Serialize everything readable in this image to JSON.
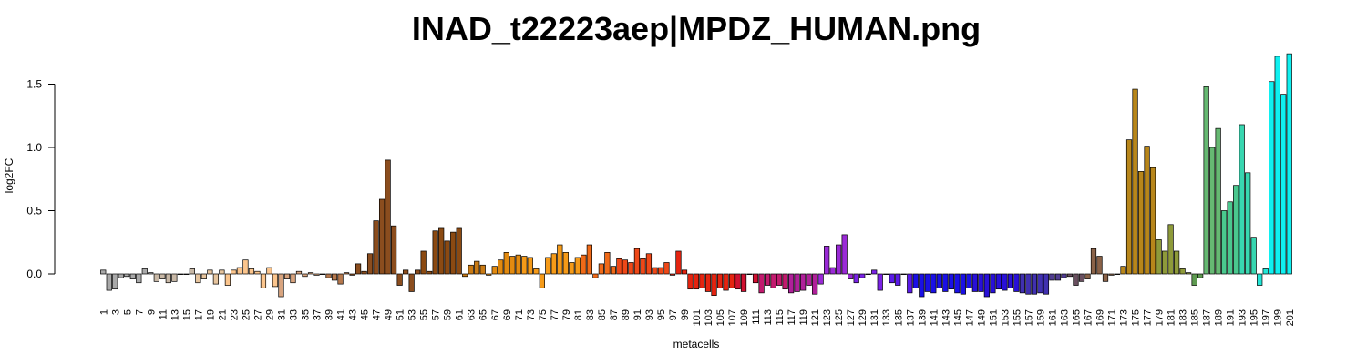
{
  "chart_data": {
    "type": "bar",
    "title": "INAD_t22223aep|MPDZ_HUMAN.png",
    "xlabel": "metacells",
    "ylabel": "log2FC",
    "ylim": [
      -0.2,
      1.75
    ],
    "yticks": [
      0.0,
      0.5,
      1.0,
      1.5
    ],
    "ytick_labels": [
      "0.0",
      "0.5",
      "1.0",
      "1.5"
    ],
    "xtick_labels": [
      "1",
      "3",
      "5",
      "7",
      "9",
      "11",
      "13",
      "15",
      "17",
      "19",
      "21",
      "23",
      "25",
      "27",
      "29",
      "31",
      "33",
      "35",
      "37",
      "39",
      "41",
      "43",
      "45",
      "47",
      "49",
      "51",
      "53",
      "55",
      "57",
      "59",
      "61",
      "63",
      "65",
      "67",
      "69",
      "71",
      "73",
      "75",
      "77",
      "79",
      "81",
      "83",
      "85",
      "87",
      "89",
      "91",
      "93",
      "95",
      "97",
      "99",
      "101",
      "103",
      "105",
      "107",
      "109",
      "111",
      "113",
      "115",
      "117",
      "119",
      "121",
      "123",
      "125",
      "127",
      "129",
      "131",
      "133",
      "135",
      "137",
      "139",
      "141",
      "143",
      "145",
      "147",
      "149",
      "151",
      "153",
      "155",
      "157",
      "159",
      "161",
      "163",
      "165",
      "167",
      "169",
      "171",
      "173",
      "175",
      "177",
      "179",
      "181",
      "183",
      "185",
      "187",
      "189",
      "191",
      "193",
      "195",
      "197",
      "199",
      "201"
    ],
    "categories": [
      "1",
      "2",
      "3",
      "4",
      "5",
      "6",
      "7",
      "8",
      "9",
      "10",
      "11",
      "12",
      "13",
      "14",
      "15",
      "16",
      "17",
      "18",
      "19",
      "20",
      "21",
      "22",
      "23",
      "24",
      "25",
      "26",
      "27",
      "28",
      "29",
      "30",
      "31",
      "32",
      "33",
      "34",
      "35",
      "36",
      "37",
      "38",
      "39",
      "40",
      "41",
      "42",
      "43",
      "44",
      "45",
      "46",
      "47",
      "48",
      "49",
      "50",
      "51",
      "52",
      "53",
      "54",
      "55",
      "56",
      "57",
      "58",
      "59",
      "60",
      "61",
      "62",
      "63",
      "64",
      "65",
      "66",
      "67",
      "68",
      "69",
      "70",
      "71",
      "72",
      "73",
      "74",
      "75",
      "76",
      "77",
      "78",
      "79",
      "80",
      "81",
      "82",
      "83",
      "84",
      "85",
      "86",
      "87",
      "88",
      "89",
      "90",
      "91",
      "92",
      "93",
      "94",
      "95",
      "96",
      "97",
      "98",
      "99",
      "100",
      "101",
      "102",
      "103",
      "104",
      "105",
      "106",
      "107",
      "108",
      "109",
      "110",
      "111",
      "112",
      "113",
      "114",
      "115",
      "116",
      "117",
      "118",
      "119",
      "120",
      "121",
      "122",
      "123",
      "124",
      "125",
      "126",
      "127",
      "128",
      "129",
      "130",
      "131",
      "132",
      "133",
      "134",
      "135",
      "136",
      "137",
      "138",
      "139",
      "140",
      "141",
      "142",
      "143",
      "144",
      "145",
      "146",
      "147",
      "148",
      "149",
      "150",
      "151",
      "152",
      "153",
      "154",
      "155",
      "156",
      "157",
      "158",
      "159",
      "160",
      "161",
      "162",
      "163",
      "164",
      "165",
      "166",
      "167",
      "168",
      "169",
      "170",
      "171",
      "172",
      "173",
      "174",
      "175",
      "176",
      "177",
      "178",
      "179",
      "180",
      "181",
      "182",
      "183",
      "184",
      "185",
      "186",
      "187",
      "188",
      "189",
      "190",
      "191",
      "192",
      "193",
      "194",
      "195",
      "196",
      "197",
      "198",
      "199",
      "200",
      "201"
    ],
    "values": [
      0.03,
      -0.13,
      -0.12,
      -0.03,
      -0.02,
      -0.04,
      -0.07,
      0.04,
      0.01,
      -0.06,
      -0.04,
      -0.07,
      -0.06,
      0.0,
      0.0,
      0.04,
      -0.07,
      -0.04,
      0.03,
      -0.08,
      0.03,
      -0.09,
      0.03,
      0.05,
      0.11,
      0.04,
      0.02,
      -0.11,
      0.05,
      -0.1,
      -0.18,
      -0.04,
      -0.07,
      0.02,
      -0.02,
      0.01,
      -0.01,
      0.0,
      -0.03,
      -0.05,
      -0.08,
      0.01,
      -0.01,
      0.08,
      0.02,
      0.16,
      0.42,
      0.59,
      0.9,
      0.38,
      -0.09,
      0.03,
      -0.14,
      0.03,
      0.18,
      0.02,
      0.34,
      0.36,
      0.26,
      0.33,
      0.36,
      -0.02,
      0.07,
      0.1,
      0.07,
      -0.01,
      0.06,
      0.11,
      0.17,
      0.14,
      0.15,
      0.14,
      0.13,
      0.04,
      -0.11,
      0.13,
      0.16,
      0.23,
      0.17,
      0.09,
      0.13,
      0.15,
      0.23,
      -0.03,
      0.08,
      0.17,
      0.06,
      0.12,
      0.11,
      0.09,
      0.2,
      0.12,
      0.16,
      0.05,
      0.05,
      0.09,
      -0.01,
      0.18,
      0.03,
      -0.12,
      -0.12,
      -0.11,
      -0.14,
      -0.17,
      -0.11,
      -0.13,
      -0.11,
      -0.12,
      -0.14,
      0.0,
      -0.07,
      -0.15,
      -0.09,
      -0.11,
      -0.09,
      -0.12,
      -0.15,
      -0.14,
      -0.13,
      -0.09,
      -0.16,
      -0.08,
      0.22,
      0.05,
      0.23,
      0.31,
      -0.04,
      -0.07,
      -0.03,
      0.0,
      0.03,
      -0.13,
      0.0,
      -0.07,
      -0.09,
      0.0,
      -0.15,
      -0.11,
      -0.18,
      -0.14,
      -0.15,
      -0.11,
      -0.14,
      -0.12,
      -0.15,
      -0.16,
      -0.11,
      -0.14,
      -0.14,
      -0.18,
      -0.15,
      -0.12,
      -0.13,
      -0.11,
      -0.14,
      -0.15,
      -0.16,
      -0.16,
      -0.15,
      -0.16,
      -0.05,
      -0.05,
      -0.03,
      -0.02,
      -0.09,
      -0.06,
      -0.04,
      0.2,
      0.14,
      -0.06,
      -0.01,
      0.0,
      0.06,
      1.06,
      1.46,
      0.81,
      1.01,
      0.84,
      0.27,
      0.18,
      0.39,
      0.18,
      0.04,
      0.01,
      -0.09,
      -0.03,
      1.48,
      1.0,
      1.15,
      0.5,
      0.57,
      0.7,
      1.18,
      0.8,
      0.29,
      -0.09,
      0.04,
      1.52,
      1.72,
      1.42,
      1.74
    ],
    "grid": false,
    "legend": "none",
    "color_stops": [
      {
        "from": 1,
        "color": "#a9a9a9"
      },
      {
        "from": 10,
        "color": "#c8b8a6"
      },
      {
        "from": 17,
        "color": "#e6c49d"
      },
      {
        "from": 22,
        "color": "#fbc58d"
      },
      {
        "from": 31,
        "color": "#d8a47f"
      },
      {
        "from": 38,
        "color": "#b5784d"
      },
      {
        "from": 43,
        "color": "#8b4d1e"
      },
      {
        "from": 55,
        "color": "#8b4a12"
      },
      {
        "from": 62,
        "color": "#c97a14"
      },
      {
        "from": 66,
        "color": "#e28a10"
      },
      {
        "from": 72,
        "color": "#f59a18"
      },
      {
        "from": 82,
        "color": "#f06a18"
      },
      {
        "from": 88,
        "color": "#ee4818"
      },
      {
        "from": 97,
        "color": "#e52410"
      },
      {
        "from": 108,
        "color": "#d01030"
      },
      {
        "from": 112,
        "color": "#c21a6e"
      },
      {
        "from": 117,
        "color": "#b0209a"
      },
      {
        "from": 122,
        "color": "#9a2ad6"
      },
      {
        "from": 128,
        "color": "#7a22e6"
      },
      {
        "from": 134,
        "color": "#5a1ae8"
      },
      {
        "from": 138,
        "color": "#1a10e6"
      },
      {
        "from": 148,
        "color": "#2810d8"
      },
      {
        "from": 156,
        "color": "#4030b0"
      },
      {
        "from": 161,
        "color": "#503c90"
      },
      {
        "from": 164,
        "color": "#6a5060"
      },
      {
        "from": 167,
        "color": "#8a6248"
      },
      {
        "from": 172,
        "color": "#b8861a"
      },
      {
        "from": 179,
        "color": "#8e9a3a"
      },
      {
        "from": 185,
        "color": "#5e9a50"
      },
      {
        "from": 187,
        "color": "#66b872"
      },
      {
        "from": 190,
        "color": "#4ac88e"
      },
      {
        "from": 193,
        "color": "#38d6b0"
      },
      {
        "from": 196,
        "color": "#22e6d6"
      },
      {
        "from": 198,
        "color": "#10f0f0"
      }
    ]
  }
}
